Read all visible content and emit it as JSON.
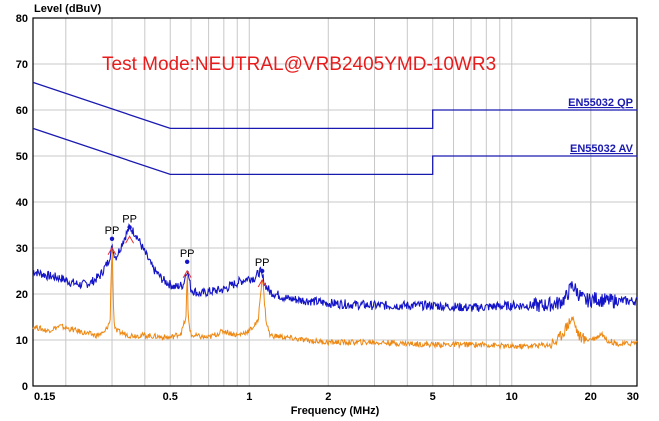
{
  "chart_data": {
    "type": "line",
    "title": "Test Mode:NEUTRAL@VRB2405YMD-10WR3",
    "ylabel": "Level (dBuV)",
    "xlabel": "Frequency (MHz)",
    "x_scale": "log",
    "xlim": [
      0.15,
      30
    ],
    "ylim": [
      0,
      80
    ],
    "x_ticks": [
      {
        "value": 0.15,
        "label": "0.15"
      },
      {
        "value": 0.5,
        "label": "0.5"
      },
      {
        "value": 1,
        "label": "1"
      },
      {
        "value": 2,
        "label": "2"
      },
      {
        "value": 5,
        "label": "5"
      },
      {
        "value": 10,
        "label": "10"
      },
      {
        "value": 20,
        "label": "20"
      },
      {
        "value": 30,
        "label": "30"
      }
    ],
    "y_ticks": [
      {
        "value": 0,
        "label": "0"
      },
      {
        "value": 10,
        "label": "10"
      },
      {
        "value": 20,
        "label": "20"
      },
      {
        "value": 30,
        "label": "30"
      },
      {
        "value": 40,
        "label": "40"
      },
      {
        "value": 50,
        "label": "50"
      },
      {
        "value": 60,
        "label": "60"
      },
      {
        "value": 70,
        "label": "70"
      },
      {
        "value": 80,
        "label": "80"
      }
    ],
    "grid": true,
    "limit_lines": [
      {
        "name": "EN55032 QP",
        "color": "#1a1ab0",
        "points": [
          [
            0.15,
            66
          ],
          [
            0.5,
            56
          ],
          [
            5,
            56
          ],
          [
            5,
            60
          ],
          [
            30,
            60
          ]
        ]
      },
      {
        "name": "EN55032  AV",
        "color": "#1a1ab0",
        "points": [
          [
            0.15,
            56
          ],
          [
            0.5,
            46
          ],
          [
            5,
            46
          ],
          [
            5,
            50
          ],
          [
            30,
            50
          ]
        ]
      }
    ],
    "series": [
      {
        "color": "#1515c8",
        "points": [
          [
            0.15,
            25
          ],
          [
            0.17,
            24
          ],
          [
            0.19,
            23.5
          ],
          [
            0.21,
            22.5
          ],
          [
            0.23,
            22
          ],
          [
            0.25,
            22.5
          ],
          [
            0.27,
            24
          ],
          [
            0.29,
            27
          ],
          [
            0.3,
            30
          ],
          [
            0.31,
            28
          ],
          [
            0.32,
            29.5
          ],
          [
            0.33,
            31.5
          ],
          [
            0.34,
            33
          ],
          [
            0.35,
            34.5
          ],
          [
            0.37,
            33
          ],
          [
            0.4,
            29
          ],
          [
            0.43,
            25.5
          ],
          [
            0.47,
            23
          ],
          [
            0.52,
            21.5
          ],
          [
            0.56,
            22
          ],
          [
            0.58,
            25.5
          ],
          [
            0.6,
            21
          ],
          [
            0.65,
            20
          ],
          [
            0.7,
            20.5
          ],
          [
            0.8,
            21
          ],
          [
            0.9,
            22.5
          ],
          [
            1.0,
            23.5
          ],
          [
            1.05,
            23.5
          ],
          [
            1.1,
            25
          ],
          [
            1.15,
            22
          ],
          [
            1.2,
            20.5
          ],
          [
            1.4,
            19
          ],
          [
            1.7,
            18.5
          ],
          [
            2,
            18
          ],
          [
            3,
            17.5
          ],
          [
            4,
            17.5
          ],
          [
            5,
            17.5
          ],
          [
            7,
            17
          ],
          [
            10,
            17.5
          ],
          [
            13,
            17.5
          ],
          [
            15,
            18
          ],
          [
            16,
            19
          ],
          [
            17,
            22
          ],
          [
            18,
            20
          ],
          [
            19,
            18.5
          ],
          [
            21,
            19
          ],
          [
            23,
            18.5
          ],
          [
            26,
            18.5
          ],
          [
            30,
            18.5
          ]
        ]
      },
      {
        "color": "#ee8812",
        "points": [
          [
            0.15,
            13
          ],
          [
            0.17,
            12
          ],
          [
            0.19,
            13
          ],
          [
            0.22,
            12
          ],
          [
            0.26,
            11
          ],
          [
            0.28,
            11.5
          ],
          [
            0.295,
            14
          ],
          [
            0.3,
            31
          ],
          [
            0.305,
            14
          ],
          [
            0.31,
            12
          ],
          [
            0.35,
            11
          ],
          [
            0.4,
            11
          ],
          [
            0.5,
            10.5
          ],
          [
            0.55,
            11.5
          ],
          [
            0.575,
            15
          ],
          [
            0.58,
            26
          ],
          [
            0.585,
            15
          ],
          [
            0.6,
            11
          ],
          [
            0.7,
            10.5
          ],
          [
            0.8,
            12
          ],
          [
            0.9,
            11
          ],
          [
            1.0,
            12
          ],
          [
            1.08,
            14
          ],
          [
            1.12,
            24
          ],
          [
            1.16,
            14
          ],
          [
            1.2,
            11
          ],
          [
            1.4,
            10.5
          ],
          [
            1.6,
            10
          ],
          [
            2,
            9.5
          ],
          [
            3,
            9.5
          ],
          [
            5,
            9
          ],
          [
            8,
            9
          ],
          [
            10,
            8.5
          ],
          [
            14,
            9
          ],
          [
            15,
            10
          ],
          [
            16,
            12.5
          ],
          [
            17,
            15
          ],
          [
            18,
            11
          ],
          [
            19,
            10
          ],
          [
            21,
            10.5
          ],
          [
            22,
            11.5
          ],
          [
            23,
            10
          ],
          [
            26,
            9
          ],
          [
            30,
            9.5
          ]
        ]
      }
    ],
    "markers": [
      {
        "x": 0.3,
        "y": 32,
        "label": "PP"
      },
      {
        "x": 0.35,
        "y": 34.5,
        "label": "PP"
      },
      {
        "x": 0.58,
        "y": 27,
        "label": "PP"
      },
      {
        "x": 1.12,
        "y": 25,
        "label": "PP"
      }
    ]
  }
}
